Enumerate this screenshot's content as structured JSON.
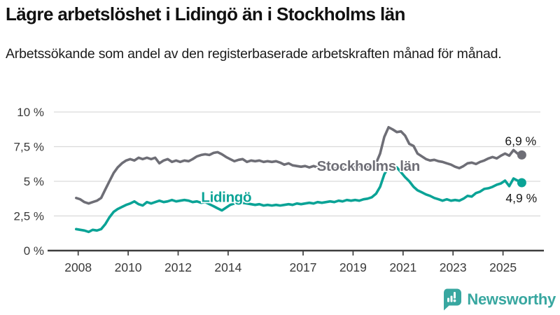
{
  "header": {
    "title": "Lägre arbetslöshet i Lidingö än i Stockholms län",
    "subtitle": "Arbetssökande som andel av den registerbaserade arbetskraften månad för månad."
  },
  "footer": {
    "brand": "Newsworthy"
  },
  "colors": {
    "stockholm": "#6e6e76",
    "lidingo": "#0aa396",
    "axis": "#3d3d3d",
    "grid": "#d9d9d9",
    "tick_text": "#3a3a3a",
    "value_text": "#1a1a1a",
    "brand": "#38a7a0",
    "background": "#ffffff"
  },
  "chart_data": {
    "type": "line",
    "title": "Lägre arbetslöshet i Lidingö än i Stockholms län",
    "subtitle": "Arbetssökande som andel av den registerbaserade arbetskraften månad för månad.",
    "ylabel": "",
    "xlabel": "",
    "unit": "%",
    "ylim": [
      0,
      10
    ],
    "xlim": [
      2007.6,
      2026.4
    ],
    "grid": "horizontal",
    "legend_position": "inline-annotations",
    "y_ticks": [
      {
        "value": 0,
        "label": "0 %"
      },
      {
        "value": 2.5,
        "label": "2,5 %"
      },
      {
        "value": 5,
        "label": "5 %"
      },
      {
        "value": 7.5,
        "label": "7,5 %"
      },
      {
        "value": 10,
        "label": "10 %"
      }
    ],
    "x_ticks": [
      {
        "value": 2008,
        "label": "2008"
      },
      {
        "value": 2010,
        "label": "2010"
      },
      {
        "value": 2012,
        "label": "2012"
      },
      {
        "value": 2014,
        "label": "2014"
      },
      {
        "value": 2017,
        "label": "2017"
      },
      {
        "value": 2019,
        "label": "2019"
      },
      {
        "value": 2021,
        "label": "2021"
      },
      {
        "value": 2023,
        "label": "2023"
      },
      {
        "value": 2025,
        "label": "2025"
      }
    ],
    "annotations": [
      {
        "text": "Stockholms län",
        "x": 2017.55,
        "y": 5.76,
        "color": "#6e6e76"
      },
      {
        "text": "Lidingö",
        "x": 2012.92,
        "y": 3.5,
        "color": "#0aa396"
      }
    ],
    "series": [
      {
        "name": "Stockholms län",
        "color": "#6e6e76",
        "end_label": "6,9 %",
        "end_value": 6.9,
        "points": [
          [
            2007.92,
            3.8
          ],
          [
            2008.08,
            3.7
          ],
          [
            2008.25,
            3.5
          ],
          [
            2008.42,
            3.4
          ],
          [
            2008.58,
            3.5
          ],
          [
            2008.75,
            3.6
          ],
          [
            2008.92,
            3.8
          ],
          [
            2009.08,
            4.4
          ],
          [
            2009.25,
            5.0
          ],
          [
            2009.42,
            5.6
          ],
          [
            2009.58,
            6.0
          ],
          [
            2009.75,
            6.3
          ],
          [
            2009.92,
            6.5
          ],
          [
            2010.08,
            6.6
          ],
          [
            2010.25,
            6.5
          ],
          [
            2010.42,
            6.7
          ],
          [
            2010.58,
            6.6
          ],
          [
            2010.75,
            6.7
          ],
          [
            2010.92,
            6.6
          ],
          [
            2011.08,
            6.7
          ],
          [
            2011.25,
            6.3
          ],
          [
            2011.42,
            6.5
          ],
          [
            2011.58,
            6.6
          ],
          [
            2011.75,
            6.4
          ],
          [
            2011.92,
            6.5
          ],
          [
            2012.08,
            6.4
          ],
          [
            2012.25,
            6.5
          ],
          [
            2012.42,
            6.45
          ],
          [
            2012.58,
            6.6
          ],
          [
            2012.75,
            6.8
          ],
          [
            2012.92,
            6.9
          ],
          [
            2013.08,
            6.95
          ],
          [
            2013.25,
            6.9
          ],
          [
            2013.42,
            7.05
          ],
          [
            2013.58,
            7.1
          ],
          [
            2013.75,
            6.95
          ],
          [
            2013.92,
            6.75
          ],
          [
            2014.08,
            6.6
          ],
          [
            2014.25,
            6.45
          ],
          [
            2014.42,
            6.55
          ],
          [
            2014.58,
            6.6
          ],
          [
            2014.75,
            6.4
          ],
          [
            2014.92,
            6.5
          ],
          [
            2015.08,
            6.45
          ],
          [
            2015.25,
            6.5
          ],
          [
            2015.42,
            6.4
          ],
          [
            2015.58,
            6.45
          ],
          [
            2015.75,
            6.4
          ],
          [
            2015.92,
            6.45
          ],
          [
            2016.08,
            6.35
          ],
          [
            2016.25,
            6.2
          ],
          [
            2016.42,
            6.3
          ],
          [
            2016.58,
            6.15
          ],
          [
            2016.75,
            6.1
          ],
          [
            2016.92,
            6.05
          ],
          [
            2017.08,
            6.1
          ],
          [
            2017.25,
            6.0
          ],
          [
            2017.42,
            6.1
          ],
          [
            2017.58,
            6.0
          ],
          [
            2017.75,
            6.05
          ],
          [
            2017.92,
            5.95
          ],
          [
            2018.08,
            6.0
          ],
          [
            2018.25,
            5.9
          ],
          [
            2018.42,
            6.0
          ],
          [
            2018.58,
            5.95
          ],
          [
            2018.75,
            6.0
          ],
          [
            2018.92,
            6.05
          ],
          [
            2019.08,
            6.0
          ],
          [
            2019.25,
            6.05
          ],
          [
            2019.42,
            6.1
          ],
          [
            2019.58,
            6.05
          ],
          [
            2019.75,
            6.1
          ],
          [
            2019.92,
            6.3
          ],
          [
            2020.08,
            7.0
          ],
          [
            2020.25,
            8.2
          ],
          [
            2020.42,
            8.9
          ],
          [
            2020.58,
            8.75
          ],
          [
            2020.75,
            8.55
          ],
          [
            2020.92,
            8.6
          ],
          [
            2021.08,
            8.3
          ],
          [
            2021.25,
            7.7
          ],
          [
            2021.42,
            7.55
          ],
          [
            2021.58,
            7.0
          ],
          [
            2021.75,
            6.8
          ],
          [
            2021.92,
            6.6
          ],
          [
            2022.08,
            6.5
          ],
          [
            2022.25,
            6.55
          ],
          [
            2022.42,
            6.45
          ],
          [
            2022.58,
            6.4
          ],
          [
            2022.75,
            6.3
          ],
          [
            2022.92,
            6.2
          ],
          [
            2023.08,
            6.05
          ],
          [
            2023.25,
            5.95
          ],
          [
            2023.42,
            6.1
          ],
          [
            2023.58,
            6.3
          ],
          [
            2023.75,
            6.35
          ],
          [
            2023.92,
            6.25
          ],
          [
            2024.08,
            6.4
          ],
          [
            2024.25,
            6.5
          ],
          [
            2024.42,
            6.65
          ],
          [
            2024.58,
            6.75
          ],
          [
            2024.75,
            6.65
          ],
          [
            2024.92,
            6.85
          ],
          [
            2025.08,
            7.0
          ],
          [
            2025.25,
            6.85
          ],
          [
            2025.42,
            7.25
          ],
          [
            2025.58,
            7.0
          ],
          [
            2025.75,
            6.9
          ]
        ]
      },
      {
        "name": "Lidingö",
        "color": "#0aa396",
        "end_label": "4,9 %",
        "end_value": 4.9,
        "points": [
          [
            2007.92,
            1.55
          ],
          [
            2008.08,
            1.5
          ],
          [
            2008.25,
            1.45
          ],
          [
            2008.42,
            1.35
          ],
          [
            2008.58,
            1.5
          ],
          [
            2008.75,
            1.45
          ],
          [
            2008.92,
            1.55
          ],
          [
            2009.08,
            1.9
          ],
          [
            2009.25,
            2.4
          ],
          [
            2009.42,
            2.8
          ],
          [
            2009.58,
            3.0
          ],
          [
            2009.75,
            3.15
          ],
          [
            2009.92,
            3.3
          ],
          [
            2010.08,
            3.4
          ],
          [
            2010.25,
            3.55
          ],
          [
            2010.42,
            3.35
          ],
          [
            2010.58,
            3.25
          ],
          [
            2010.75,
            3.5
          ],
          [
            2010.92,
            3.4
          ],
          [
            2011.08,
            3.5
          ],
          [
            2011.25,
            3.6
          ],
          [
            2011.42,
            3.5
          ],
          [
            2011.58,
            3.55
          ],
          [
            2011.75,
            3.65
          ],
          [
            2011.92,
            3.55
          ],
          [
            2012.08,
            3.6
          ],
          [
            2012.25,
            3.65
          ],
          [
            2012.42,
            3.6
          ],
          [
            2012.58,
            3.5
          ],
          [
            2012.75,
            3.55
          ],
          [
            2012.92,
            3.45
          ],
          [
            2013.08,
            3.5
          ],
          [
            2013.25,
            3.35
          ],
          [
            2013.42,
            3.2
          ],
          [
            2013.58,
            3.05
          ],
          [
            2013.75,
            2.9
          ],
          [
            2013.92,
            3.1
          ],
          [
            2014.08,
            3.3
          ],
          [
            2014.25,
            3.4
          ],
          [
            2014.42,
            3.35
          ],
          [
            2014.58,
            3.45
          ],
          [
            2014.75,
            3.4
          ],
          [
            2014.92,
            3.35
          ],
          [
            2015.08,
            3.3
          ],
          [
            2015.25,
            3.35
          ],
          [
            2015.42,
            3.25
          ],
          [
            2015.58,
            3.3
          ],
          [
            2015.75,
            3.25
          ],
          [
            2015.92,
            3.3
          ],
          [
            2016.08,
            3.25
          ],
          [
            2016.25,
            3.3
          ],
          [
            2016.42,
            3.35
          ],
          [
            2016.58,
            3.3
          ],
          [
            2016.75,
            3.4
          ],
          [
            2016.92,
            3.35
          ],
          [
            2017.08,
            3.4
          ],
          [
            2017.25,
            3.45
          ],
          [
            2017.42,
            3.4
          ],
          [
            2017.58,
            3.5
          ],
          [
            2017.75,
            3.45
          ],
          [
            2017.92,
            3.5
          ],
          [
            2018.08,
            3.55
          ],
          [
            2018.25,
            3.5
          ],
          [
            2018.42,
            3.6
          ],
          [
            2018.58,
            3.55
          ],
          [
            2018.75,
            3.65
          ],
          [
            2018.92,
            3.6
          ],
          [
            2019.08,
            3.65
          ],
          [
            2019.25,
            3.6
          ],
          [
            2019.42,
            3.7
          ],
          [
            2019.58,
            3.75
          ],
          [
            2019.75,
            3.85
          ],
          [
            2019.92,
            4.1
          ],
          [
            2020.08,
            4.6
          ],
          [
            2020.25,
            5.5
          ],
          [
            2020.42,
            6.05
          ],
          [
            2020.58,
            5.95
          ],
          [
            2020.75,
            6.0
          ],
          [
            2020.92,
            5.65
          ],
          [
            2021.08,
            5.3
          ],
          [
            2021.25,
            5.0
          ],
          [
            2021.42,
            4.6
          ],
          [
            2021.58,
            4.35
          ],
          [
            2021.75,
            4.2
          ],
          [
            2021.92,
            4.05
          ],
          [
            2022.08,
            3.95
          ],
          [
            2022.25,
            3.8
          ],
          [
            2022.42,
            3.7
          ],
          [
            2022.58,
            3.6
          ],
          [
            2022.75,
            3.7
          ],
          [
            2022.92,
            3.6
          ],
          [
            2023.08,
            3.65
          ],
          [
            2023.25,
            3.6
          ],
          [
            2023.42,
            3.75
          ],
          [
            2023.58,
            3.95
          ],
          [
            2023.75,
            3.9
          ],
          [
            2023.92,
            4.15
          ],
          [
            2024.08,
            4.25
          ],
          [
            2024.25,
            4.45
          ],
          [
            2024.42,
            4.5
          ],
          [
            2024.58,
            4.6
          ],
          [
            2024.75,
            4.75
          ],
          [
            2024.92,
            4.85
          ],
          [
            2025.08,
            5.05
          ],
          [
            2025.25,
            4.65
          ],
          [
            2025.42,
            5.2
          ],
          [
            2025.58,
            5.05
          ],
          [
            2025.75,
            4.9
          ]
        ]
      }
    ]
  }
}
